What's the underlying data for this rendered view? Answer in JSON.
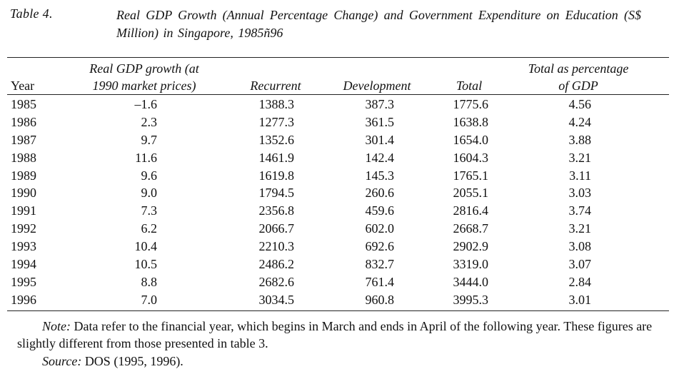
{
  "caption": {
    "label": "Table 4.",
    "title": "Real GDP Growth (Annual Percentage Change) and Government Expenditure on Education (S$ Million) in Singapore, 1985ñ96"
  },
  "table": {
    "headers": {
      "year": "Year",
      "gdp_line1": "Real GDP growth (at",
      "gdp_line2": "1990 market prices)",
      "recurrent": "Recurrent",
      "development": "Development",
      "total": "Total",
      "pct_line1": "Total as percentage",
      "pct_line2": "of GDP"
    },
    "rows": [
      {
        "year": "1985",
        "gdp": "–1.6",
        "recurrent": "1388.3",
        "development": "387.3",
        "total": "1775.6",
        "pct": "4.56"
      },
      {
        "year": "1986",
        "gdp": "2.3",
        "recurrent": "1277.3",
        "development": "361.5",
        "total": "1638.8",
        "pct": "4.24"
      },
      {
        "year": "1987",
        "gdp": "9.7",
        "recurrent": "1352.6",
        "development": "301.4",
        "total": "1654.0",
        "pct": "3.88"
      },
      {
        "year": "1988",
        "gdp": "11.6",
        "recurrent": "1461.9",
        "development": "142.4",
        "total": "1604.3",
        "pct": "3.21"
      },
      {
        "year": "1989",
        "gdp": "9.6",
        "recurrent": "1619.8",
        "development": "145.3",
        "total": "1765.1",
        "pct": "3.11"
      },
      {
        "year": "1990",
        "gdp": "9.0",
        "recurrent": "1794.5",
        "development": "260.6",
        "total": "2055.1",
        "pct": "3.03"
      },
      {
        "year": "1991",
        "gdp": "7.3",
        "recurrent": "2356.8",
        "development": "459.6",
        "total": "2816.4",
        "pct": "3.74"
      },
      {
        "year": "1992",
        "gdp": "6.2",
        "recurrent": "2066.7",
        "development": "602.0",
        "total": "2668.7",
        "pct": "3.21"
      },
      {
        "year": "1993",
        "gdp": "10.4",
        "recurrent": "2210.3",
        "development": "692.6",
        "total": "2902.9",
        "pct": "3.08"
      },
      {
        "year": "1994",
        "gdp": "10.5",
        "recurrent": "2486.2",
        "development": "832.7",
        "total": "3319.0",
        "pct": "3.07"
      },
      {
        "year": "1995",
        "gdp": "8.8",
        "recurrent": "2682.6",
        "development": "761.4",
        "total": "3444.0",
        "pct": "2.84"
      },
      {
        "year": "1996",
        "gdp": "7.0",
        "recurrent": "3034.5",
        "development": "960.8",
        "total": "3995.3",
        "pct": "3.01"
      }
    ]
  },
  "notes": {
    "note_label": "Note:",
    "note_text": "Data refer to the financial year, which begins in March and ends in April of the following year. These figures are slightly different from those presented in table 3.",
    "source_label": "Source:",
    "source_text": "DOS (1995, 1996)."
  }
}
